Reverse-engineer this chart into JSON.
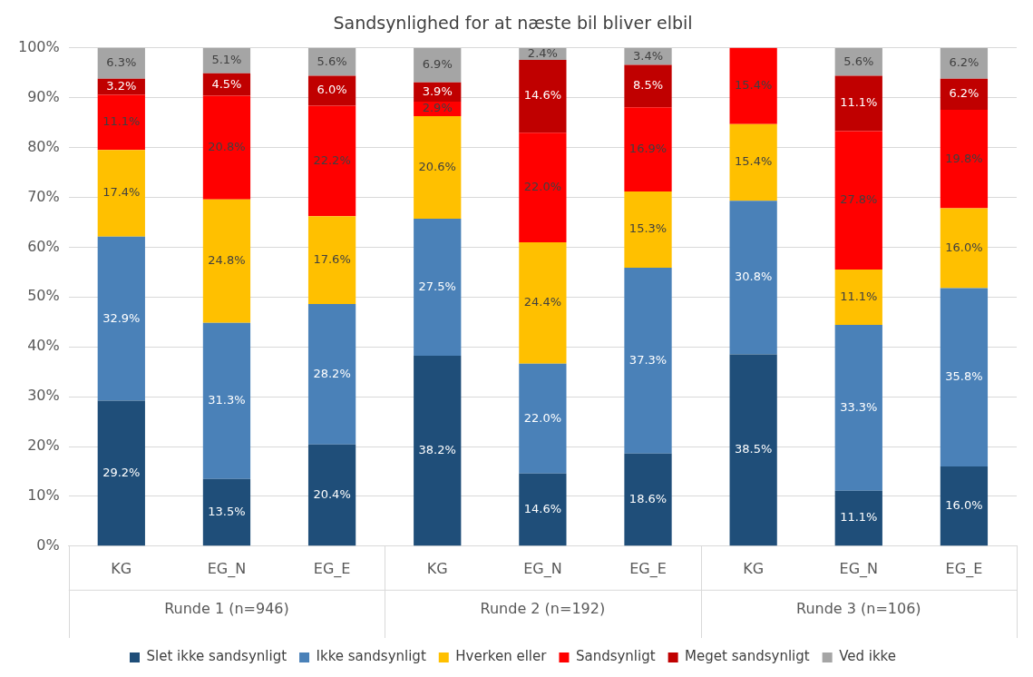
{
  "chart_data": {
    "type": "bar",
    "stacked": true,
    "title": "Sandsynlighed for at næste bil bliver elbil",
    "categories": [
      "KG",
      "EG_N",
      "EG_E",
      "KG",
      "EG_N",
      "EG_E",
      "KG",
      "EG_N",
      "EG_E"
    ],
    "annotations": [
      "Runde 1 (n=946)",
      "Runde 2 (n=192)",
      "Runde 3 (n=106)"
    ],
    "series": [
      {
        "name": "Slet ikke sandsynligt",
        "color": "#1f4e79",
        "values": [
          29.2,
          13.5,
          20.4,
          38.2,
          14.6,
          18.6,
          38.5,
          11.1,
          16.0
        ],
        "value_labels": [
          "29.2%",
          "13.5%",
          "20.4%",
          "38.2%",
          "14.6%",
          "18.6%",
          "38.5%",
          "11.1%",
          "16.0%"
        ]
      },
      {
        "name": "Ikke sandsynligt",
        "color": "#4a81b8",
        "values": [
          32.9,
          31.3,
          28.2,
          27.5,
          22.0,
          37.3,
          30.8,
          33.3,
          35.8
        ],
        "value_labels": [
          "32.9%",
          "31.3%",
          "28.2%",
          "27.5%",
          "22.0%",
          "37.3%",
          "30.8%",
          "33.3%",
          "35.8%"
        ]
      },
      {
        "name": "Hverken eller",
        "color": "#ffc000",
        "values": [
          17.4,
          24.8,
          17.6,
          20.6,
          24.4,
          15.3,
          15.4,
          11.1,
          16.0
        ],
        "value_labels": [
          "17.4%",
          "24.8%",
          "17.6%",
          "20.6%",
          "24.4%",
          "15.3%",
          "15.4%",
          "11.1%",
          "16.0%"
        ]
      },
      {
        "name": "Sandsynligt",
        "color": "#ff0000",
        "values": [
          11.1,
          20.8,
          22.2,
          2.9,
          22.0,
          16.9,
          15.4,
          27.8,
          19.8
        ],
        "value_labels": [
          "11.1%",
          "20.8%",
          "22.2%",
          "2.9%",
          "22.0%",
          "16.9%",
          "15.4%",
          "27.8%",
          "19.8%"
        ]
      },
      {
        "name": "Meget sandsynligt",
        "color": "#c00000",
        "values": [
          3.2,
          4.5,
          6.0,
          3.9,
          14.6,
          8.5,
          null,
          11.1,
          6.2
        ],
        "value_labels": [
          "3.2%",
          "4.5%",
          "6.0%",
          "3.9%",
          "14.6%",
          "8.5%",
          null,
          "11.1%",
          "6.2%"
        ]
      },
      {
        "name": "Ved ikke",
        "color": "#a5a5a5",
        "values": [
          6.3,
          5.1,
          5.6,
          6.9,
          2.4,
          3.4,
          null,
          5.6,
          6.2
        ],
        "value_labels": [
          "6.3%",
          "5.1%",
          "5.6%",
          "6.9%",
          "2.4%",
          "3.4%",
          null,
          "5.6%",
          "6.2%"
        ]
      }
    ],
    "ylim": [
      0,
      100
    ],
    "yticks": [
      {
        "value": 0,
        "label": "0%"
      },
      {
        "value": 10,
        "label": "10%"
      },
      {
        "value": 20,
        "label": "20%"
      },
      {
        "value": 30,
        "label": "30%"
      },
      {
        "value": 40,
        "label": "40%"
      },
      {
        "value": 50,
        "label": "50%"
      },
      {
        "value": 60,
        "label": "60%"
      },
      {
        "value": 70,
        "label": "70%"
      },
      {
        "value": 80,
        "label": "80%"
      },
      {
        "value": 90,
        "label": "90%"
      },
      {
        "value": 100,
        "label": "100%"
      }
    ],
    "grid": "y",
    "legend": "bottom"
  }
}
